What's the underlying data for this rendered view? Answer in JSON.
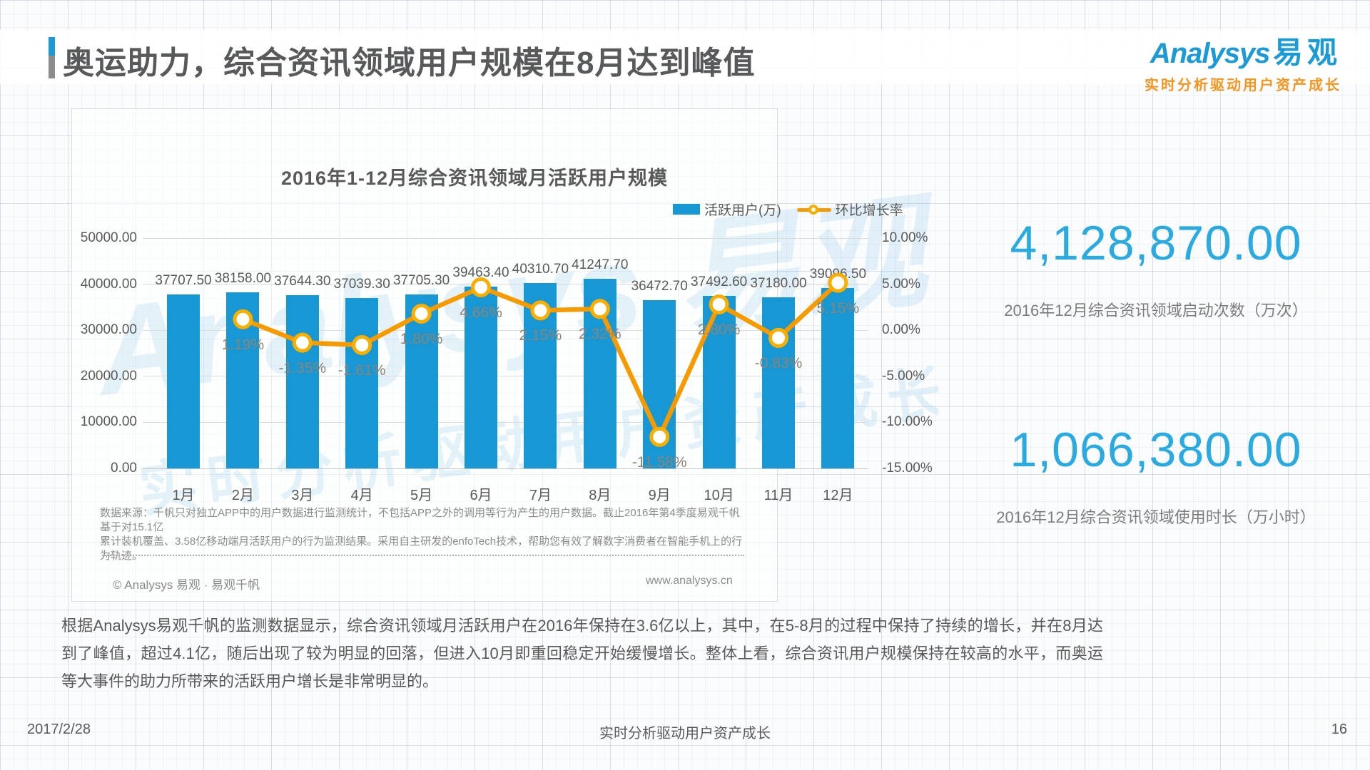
{
  "header": {
    "title": "奥运助力，综合资讯领域用户规模在8月达到峰值",
    "logo": {
      "brand_en": "Analysys",
      "brand_cn": "易观",
      "tagline": "实时分析驱动用户资产成长"
    }
  },
  "chart": {
    "title": "2016年1-12月综合资讯领域月活跃用户规模",
    "legend_bar": "活跃用户(万)",
    "legend_line": "环比增长率",
    "watermark_line1": "Analysys 易观",
    "watermark_line2": "实时分析驱动用户资产成长"
  },
  "chart_data": {
    "type": "bar+line",
    "categories": [
      "1月",
      "2月",
      "3月",
      "4月",
      "5月",
      "6月",
      "7月",
      "8月",
      "9月",
      "10月",
      "11月",
      "12月"
    ],
    "series": [
      {
        "name": "活跃用户(万)",
        "type": "bar",
        "color": "#1897d5",
        "values": [
          37707.5,
          38158.0,
          37644.3,
          37039.3,
          37705.3,
          39463.4,
          40310.7,
          41247.7,
          36472.7,
          37492.6,
          37180.0,
          39096.5
        ]
      },
      {
        "name": "环比增长率",
        "type": "line",
        "color": "#f79a00",
        "values": [
          null,
          1.19,
          -1.35,
          -1.61,
          1.8,
          4.66,
          2.15,
          2.32,
          -11.58,
          2.8,
          -0.83,
          5.15
        ]
      }
    ],
    "bar_labels": [
      "37707.50",
      "38158.00",
      "37644.30",
      "37039.30",
      "37705.30",
      "39463.40",
      "40310.70",
      "41247.70",
      "36472.70",
      "37492.60",
      "37180.00",
      "39096.50"
    ],
    "line_labels": [
      null,
      "1.19%",
      "-1.35%",
      "-1.61%",
      "1.80%",
      "4.66%",
      "2.15%",
      "2.32%",
      "-11.58%",
      "2.80%",
      "-0.83%",
      "5.15%"
    ],
    "left_axis": {
      "label_ticks": [
        "50000.00",
        "40000.00",
        "30000.00",
        "20000.00",
        "10000.00",
        "0.00"
      ],
      "min": 0,
      "max": 50000
    },
    "right_axis": {
      "label_ticks": [
        "10.00%",
        "5.00%",
        "0.00%",
        "-5.00%",
        "-10.00%",
        "-15.00%"
      ],
      "min": -15,
      "max": 10
    },
    "grid": true,
    "legend_position": "top-right"
  },
  "stats": [
    {
      "value": "4,128,870.00",
      "caption": "2016年12月综合资讯领域启动次数（万次）"
    },
    {
      "value": "1,066,380.00",
      "caption": "2016年12月综合资讯领域使用时长（万小时）"
    }
  ],
  "footnote": {
    "line1": "数据来源：千帆只对独立APP中的用户数据进行监测统计，不包括APP之外的调用等行为产生的用户数据。截止2016年第4季度易观千帆基于对15.1亿",
    "line2": "累计装机覆盖、3.58亿移动端月活跃用户的行为监测结果。采用自主研发的enfoTech技术，帮助您有效了解数字消费者在智能手机上的行为轨迹。",
    "copyright": "© Analysys 易观 · 易观千帆",
    "website": "www.analysys.cn"
  },
  "paragraph": "根据Analysys易观千帆的监测数据显示，综合资讯领域月活跃用户在2016年保持在3.6亿以上，其中，在5-8月的过程中保持了持续的增长，并在8月达到了峰值，超过4.1亿，随后出现了较为明显的回落，但进入10月即重回稳定开始缓慢增长。整体上看，综合资讯用户规模保持在较高的水平，而奥运等大事件的助力所带来的活跃用户增长是非常明显的。",
  "footer": {
    "date": "2017/2/28",
    "slogan": "实时分析驱动用户资产成长",
    "page": "16"
  }
}
